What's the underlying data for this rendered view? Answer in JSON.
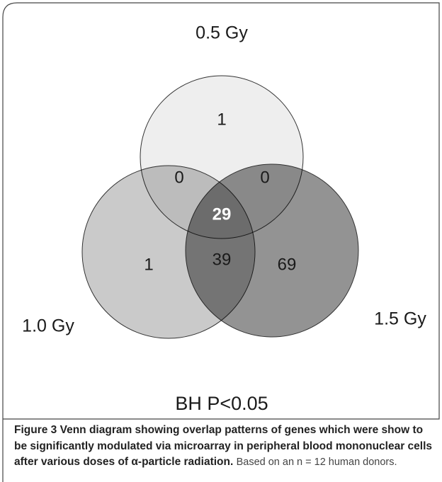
{
  "figure": {
    "sets": [
      "0.5 Gy",
      "1.0 Gy",
      "1.5 Gy"
    ],
    "regions": {
      "only_05": "1",
      "05_10": "0",
      "05_15": "0",
      "all": "29",
      "only_10": "1",
      "10_15": "39",
      "only_15": "69"
    },
    "subtitle": "BH P<0.05"
  },
  "caption": {
    "label": "Figure 3",
    "title": "Venn diagram showing overlap patterns of genes which were show to be significantly modulated via microarray in peripheral blood mononuclear cells after various doses of α-particle radiation.",
    "text": "Based on an n = 12 human donors."
  }
}
